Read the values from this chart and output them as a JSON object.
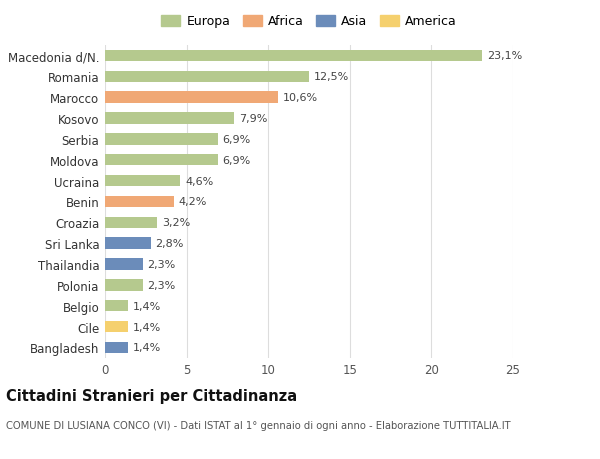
{
  "categories": [
    "Macedonia d/N.",
    "Romania",
    "Marocco",
    "Kosovo",
    "Serbia",
    "Moldova",
    "Ucraina",
    "Benin",
    "Croazia",
    "Sri Lanka",
    "Thailandia",
    "Polonia",
    "Belgio",
    "Cile",
    "Bangladesh"
  ],
  "values": [
    23.1,
    12.5,
    10.6,
    7.9,
    6.9,
    6.9,
    4.6,
    4.2,
    3.2,
    2.8,
    2.3,
    2.3,
    1.4,
    1.4,
    1.4
  ],
  "labels": [
    "23,1%",
    "12,5%",
    "10,6%",
    "7,9%",
    "6,9%",
    "6,9%",
    "4,6%",
    "4,2%",
    "3,2%",
    "2,8%",
    "2,3%",
    "2,3%",
    "1,4%",
    "1,4%",
    "1,4%"
  ],
  "continents": [
    "Europa",
    "Europa",
    "Africa",
    "Europa",
    "Europa",
    "Europa",
    "Europa",
    "Africa",
    "Europa",
    "Asia",
    "Asia",
    "Europa",
    "Europa",
    "America",
    "Asia"
  ],
  "colors": {
    "Europa": "#b5c98e",
    "Africa": "#f0a875",
    "Asia": "#6b8cba",
    "America": "#f5d06e"
  },
  "legend_labels": [
    "Europa",
    "Africa",
    "Asia",
    "America"
  ],
  "title": "Cittadini Stranieri per Cittadinanza",
  "subtitle": "COMUNE DI LUSIANA CONCO (VI) - Dati ISTAT al 1° gennaio di ogni anno - Elaborazione TUTTITALIA.IT",
  "xlim": [
    0,
    25
  ],
  "xticks": [
    0,
    5,
    10,
    15,
    20,
    25
  ],
  "background_color": "#ffffff",
  "grid_color": "#dddddd",
  "bar_height": 0.55,
  "figsize": [
    6.0,
    4.6
  ],
  "dpi": 100
}
